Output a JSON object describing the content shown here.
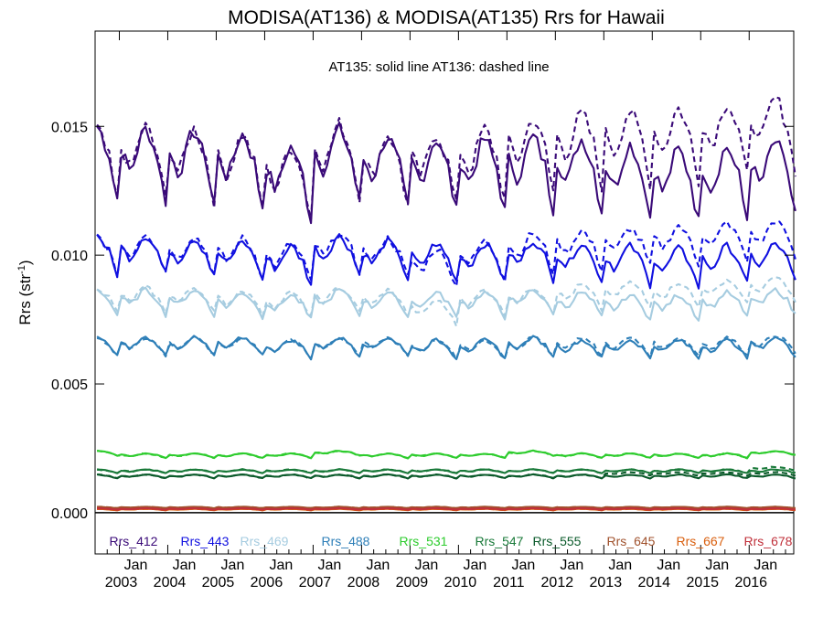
{
  "chart_data": {
    "type": "line",
    "title": "MODISA(AT136) & MODISA(AT135)  Rrs for Hawaii",
    "ylabel": "Rrs (str",
    "ylabel_sup": "-1",
    "ylabel_close": ")",
    "annotation": "AT135: solid line   AT136: dashed line",
    "ylim": [
      -0.0016,
      0.0187
    ],
    "yticks": [
      {
        "v": 0.0,
        "label": "0.000"
      },
      {
        "v": 0.005,
        "label": "0.005"
      },
      {
        "v": 0.01,
        "label": "0.010"
      },
      {
        "v": 0.015,
        "label": "0.015"
      }
    ],
    "xlim": [
      2002.5,
      2016.92
    ],
    "xticks": [
      {
        "v": 2003.0,
        "month": "Jan",
        "year": "2003"
      },
      {
        "v": 2004.0,
        "month": "Jan",
        "year": "2004"
      },
      {
        "v": 2005.0,
        "month": "Jan",
        "year": "2005"
      },
      {
        "v": 2006.0,
        "month": "Jan",
        "year": "2006"
      },
      {
        "v": 2007.0,
        "month": "Jan",
        "year": "2007"
      },
      {
        "v": 2008.0,
        "month": "Jan",
        "year": "2008"
      },
      {
        "v": 2009.0,
        "month": "Jan",
        "year": "2009"
      },
      {
        "v": 2010.0,
        "month": "Jan",
        "year": "2010"
      },
      {
        "v": 2011.0,
        "month": "Jan",
        "year": "2011"
      },
      {
        "v": 2012.0,
        "month": "Jan",
        "year": "2012"
      },
      {
        "v": 2013.0,
        "month": "Jan",
        "year": "2013"
      },
      {
        "v": 2014.0,
        "month": "Jan",
        "year": "2014"
      },
      {
        "v": 2015.0,
        "month": "Jan",
        "year": "2015"
      },
      {
        "v": 2016.0,
        "month": "Jan",
        "year": "2016"
      }
    ],
    "zero_line": 0.0,
    "series": [
      {
        "name": "Rrs_412",
        "color": "#3a0a78",
        "amp": 0.0016,
        "solid_mean": [
          0.0134,
          0.0133,
          0.0132,
          0.0131,
          0.0126,
          0.0133,
          0.013,
          0.0129,
          0.0129,
          0.013,
          0.0129,
          0.0127,
          0.0125,
          0.0126,
          0.0128
        ],
        "dashed_mean": [
          0.0133,
          0.0134,
          0.0133,
          0.0131,
          0.0126,
          0.0135,
          0.0131,
          0.0131,
          0.0133,
          0.0137,
          0.0139,
          0.014,
          0.0141,
          0.0143,
          0.0145
        ]
      },
      {
        "name": "Rrs_443",
        "color": "#1010e0",
        "amp": 0.00085,
        "solid_mean": [
          0.0099,
          0.0099,
          0.0098,
          0.0097,
          0.0095,
          0.0099,
          0.0097,
          0.0096,
          0.0096,
          0.0097,
          0.0096,
          0.0095,
          0.0094,
          0.0095,
          0.0096
        ],
        "dashed_mean": [
          0.0099,
          0.01,
          0.0099,
          0.0098,
          0.0096,
          0.01,
          0.0098,
          0.0094,
          0.0097,
          0.01,
          0.0101,
          0.0102,
          0.0103,
          0.0104,
          0.0105
        ]
      },
      {
        "name": "Rrs_469",
        "color": "#a6cce0",
        "amp": 0.00055,
        "solid_mean": [
          0.0081,
          0.0081,
          0.0081,
          0.008,
          0.0079,
          0.0081,
          0.008,
          0.008,
          0.008,
          0.0081,
          0.008,
          0.0079,
          0.0079,
          0.008,
          0.0081
        ],
        "dashed_mean": [
          0.0082,
          0.0082,
          0.0082,
          0.0081,
          0.008,
          0.0082,
          0.0081,
          0.0077,
          0.0081,
          0.0082,
          0.0083,
          0.0084,
          0.0084,
          0.0085,
          0.0086
        ]
      },
      {
        "name": "Rrs_488",
        "color": "#2e7fb8",
        "amp": 0.0004,
        "solid_mean": [
          0.0064,
          0.0064,
          0.0064,
          0.0064,
          0.0063,
          0.0064,
          0.0064,
          0.0063,
          0.0063,
          0.0064,
          0.0063,
          0.0063,
          0.0063,
          0.0063,
          0.0064
        ],
        "dashed_mean": [
          0.0064,
          0.0064,
          0.0064,
          0.0064,
          0.0063,
          0.0064,
          0.0064,
          0.0063,
          0.0063,
          0.0064,
          0.0064,
          0.0064,
          0.0064,
          0.0064,
          0.0065
        ]
      },
      {
        "name": "Rrs_531",
        "color": "#2ecc2e",
        "amp": 0.0001,
        "solid_mean": [
          0.0023,
          0.0022,
          0.0022,
          0.0022,
          0.0022,
          0.0023,
          0.0022,
          0.0022,
          0.0022,
          0.0023,
          0.0022,
          0.0022,
          0.0022,
          0.0022,
          0.0023
        ],
        "dashed_mean": [
          0.0023,
          0.0022,
          0.0022,
          0.0022,
          0.0022,
          0.0023,
          0.0022,
          0.0022,
          0.0022,
          0.0023,
          0.0022,
          0.0022,
          0.0022,
          0.0022,
          0.0023
        ]
      },
      {
        "name": "Rrs_547",
        "color": "#1a7a3a",
        "amp": 8e-05,
        "solid_mean": [
          0.0016,
          0.0016,
          0.0016,
          0.0016,
          0.0016,
          0.0016,
          0.0016,
          0.0016,
          0.0016,
          0.0016,
          0.0016,
          0.0016,
          0.0016,
          0.0016,
          0.0016
        ],
        "dashed_mean": [
          0.0016,
          0.0016,
          0.0016,
          0.0016,
          0.0016,
          0.0016,
          0.0016,
          0.0016,
          0.0016,
          0.0016,
          0.0016,
          0.0016,
          0.0016,
          0.0016,
          0.0017
        ]
      },
      {
        "name": "Rrs_555",
        "color": "#0a5a2a",
        "amp": 8e-05,
        "solid_mean": [
          0.0014,
          0.0014,
          0.0014,
          0.0014,
          0.0014,
          0.0014,
          0.0014,
          0.0014,
          0.0014,
          0.0014,
          0.0014,
          0.0014,
          0.0014,
          0.0014,
          0.0014
        ],
        "dashed_mean": [
          0.0014,
          0.0014,
          0.0014,
          0.0014,
          0.0014,
          0.0014,
          0.0014,
          0.0014,
          0.0014,
          0.0014,
          0.0014,
          0.0015,
          0.0015,
          0.0015,
          0.0015
        ]
      },
      {
        "name": "Rrs_645",
        "color": "#a0522d",
        "amp": 3e-05,
        "solid_mean": [
          0.0002,
          0.0002,
          0.0002,
          0.0002,
          0.0002,
          0.0002,
          0.0002,
          0.0002,
          0.0002,
          0.0002,
          0.0002,
          0.0002,
          0.0002,
          0.0002,
          0.0002
        ],
        "dashed_mean": [
          0.0002,
          0.0002,
          0.0002,
          0.0002,
          0.0002,
          0.0002,
          0.0002,
          0.0002,
          0.0002,
          0.0002,
          0.0002,
          0.0002,
          0.0002,
          0.0002,
          0.0002
        ]
      },
      {
        "name": "Rrs_667",
        "color": "#d95f0e",
        "amp": 3e-05,
        "solid_mean": [
          0.00012,
          0.00012,
          0.00012,
          0.00012,
          0.00012,
          0.00012,
          0.00012,
          0.00012,
          0.00012,
          0.00012,
          0.00012,
          0.00012,
          0.00012,
          0.00012,
          0.00012
        ],
        "dashed_mean": [
          0.00012,
          0.00012,
          0.00012,
          0.00012,
          0.00012,
          0.00012,
          0.00012,
          0.00012,
          0.00012,
          0.00012,
          0.00012,
          0.00012,
          0.00012,
          0.00012,
          0.00012
        ]
      },
      {
        "name": "Rrs_678",
        "color": "#c0303a",
        "amp": 3e-05,
        "solid_mean": [
          0.00014,
          0.00014,
          0.00014,
          0.00014,
          0.00014,
          0.00014,
          0.00014,
          0.00014,
          0.00014,
          0.00014,
          0.00014,
          0.00014,
          0.00014,
          0.00014,
          0.00014
        ],
        "dashed_mean": [
          0.00014,
          0.00014,
          0.00014,
          0.00014,
          0.00014,
          0.00014,
          0.00014,
          0.00014,
          0.00014,
          0.00014,
          0.00014,
          0.00014,
          0.00014,
          0.00014,
          0.00014
        ]
      }
    ]
  }
}
